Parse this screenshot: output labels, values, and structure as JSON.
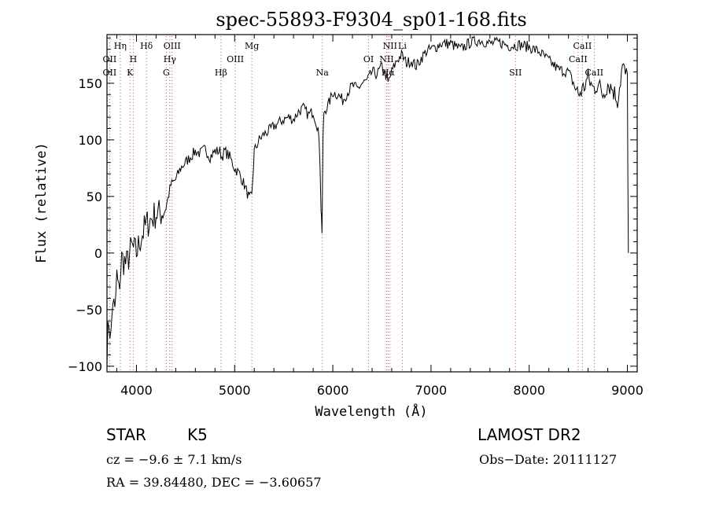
{
  "chart_data": {
    "type": "line",
    "title": "spec-55893-F9304_sp01-168.fits",
    "xlabel": "Wavelength (Å)",
    "ylabel": "Flux (relative)",
    "xlim": [
      3700,
      9100
    ],
    "ylim": [
      -105,
      193
    ],
    "xticks": [
      4000,
      5000,
      6000,
      7000,
      8000,
      9000
    ],
    "yticks": [
      -100,
      -50,
      0,
      50,
      100,
      150
    ],
    "xtick_labels": [
      "4000",
      "5000",
      "6000",
      "7000",
      "8000",
      "9000"
    ],
    "ytick_labels": [
      "−100",
      "−50",
      "0",
      "50",
      "100",
      "150"
    ],
    "grid": false,
    "series": [
      {
        "x": [
          3700,
          3720,
          3740,
          3760,
          3780,
          3800,
          3820,
          3850,
          3900,
          3950,
          4000,
          4050,
          4100,
          4150,
          4200,
          4250,
          4300,
          4350,
          4400,
          4450,
          4500,
          4550,
          4600,
          4650,
          4700,
          4750,
          4800,
          4850,
          4870,
          4900,
          4950,
          5000,
          5050,
          5100,
          5150,
          5175,
          5200,
          5250,
          5300,
          5350,
          5400,
          5450,
          5500,
          5550,
          5600,
          5650,
          5700,
          5750,
          5800,
          5850,
          5870,
          5880,
          5890,
          5895,
          5900,
          5910,
          5950,
          6000,
          6050,
          6100,
          6150,
          6200,
          6250,
          6300,
          6350,
          6400,
          6450,
          6500,
          6550,
          6563,
          6600,
          6650,
          6700,
          6750,
          6800,
          6850,
          6900,
          6950,
          7000,
          7050,
          7100,
          7200,
          7300,
          7400,
          7500,
          7600,
          7700,
          7800,
          7900,
          8000,
          8100,
          8200,
          8300,
          8400,
          8450,
          8500,
          8550,
          8600,
          8650,
          8700,
          8750,
          8800,
          8850,
          8900,
          8950,
          8980,
          9000,
          9010
        ],
        "y": [
          -85,
          -60,
          -75,
          -40,
          -55,
          -20,
          -35,
          -5,
          -10,
          5,
          0,
          15,
          25,
          30,
          35,
          35,
          40,
          60,
          65,
          75,
          80,
          85,
          90,
          88,
          92,
          85,
          90,
          90,
          85,
          90,
          85,
          75,
          70,
          60,
          48,
          50,
          90,
          100,
          105,
          108,
          112,
          115,
          118,
          120,
          118,
          125,
          128,
          122,
          125,
          110,
          80,
          40,
          20,
          60,
          100,
          125,
          130,
          142,
          140,
          135,
          142,
          148,
          145,
          150,
          152,
          160,
          158,
          165,
          155,
          150,
          160,
          170,
          175,
          168,
          170,
          165,
          172,
          178,
          180,
          182,
          185,
          185,
          180,
          186,
          188,
          185,
          186,
          183,
          184,
          182,
          178,
          170,
          162,
          160,
          150,
          140,
          145,
          155,
          145,
          150,
          140,
          150,
          145,
          135,
          165,
          158,
          155,
          0
        ]
      }
    ],
    "spectral_lines": [
      {
        "label": "OII",
        "x": 3727,
        "row": 3
      },
      {
        "label": "OII",
        "x": 3727,
        "row": 4
      },
      {
        "label": "Hη",
        "x": 3835,
        "row": 1
      },
      {
        "label": "H",
        "x": 3968,
        "row": 3
      },
      {
        "label": "K",
        "x": 3934,
        "row": 4
      },
      {
        "label": "Hδ",
        "x": 4102,
        "row": 1
      },
      {
        "label": "OIII",
        "x": 4363,
        "row": 1
      },
      {
        "label": "Hγ",
        "x": 4340,
        "row": 3
      },
      {
        "label": "G",
        "x": 4304,
        "row": 4
      },
      {
        "label": "Mg",
        "x": 5175,
        "row": 1
      },
      {
        "label": "OIII",
        "x": 5007,
        "row": 3
      },
      {
        "label": "Hβ",
        "x": 4861,
        "row": 4
      },
      {
        "label": "Na",
        "x": 5893,
        "row": 4
      },
      {
        "label": "OI",
        "x": 6364,
        "row": 3
      },
      {
        "label": "NII",
        "x": 6583,
        "row": 1
      },
      {
        "label": "Li",
        "x": 6708,
        "row": 1
      },
      {
        "label": "NII",
        "x": 6548,
        "row": 3
      },
      {
        "label": "Hα",
        "x": 6563,
        "row": 4
      },
      {
        "label": "SII",
        "x": 7860,
        "row": 4
      },
      {
        "label": "CaII",
        "x": 8542,
        "row": 1
      },
      {
        "label": "CaII",
        "x": 8498,
        "row": 3
      },
      {
        "label": "CaII",
        "x": 8662,
        "row": 4
      }
    ]
  },
  "info": {
    "object_class": "STAR",
    "subclass": "K5",
    "survey": "LAMOST DR2",
    "redshift": "cz = −9.6 ± 7.1 km/s",
    "obs_date": "Obs−Date: 20111127",
    "coords": "RA =  39.84480, DEC =  −3.60657"
  }
}
